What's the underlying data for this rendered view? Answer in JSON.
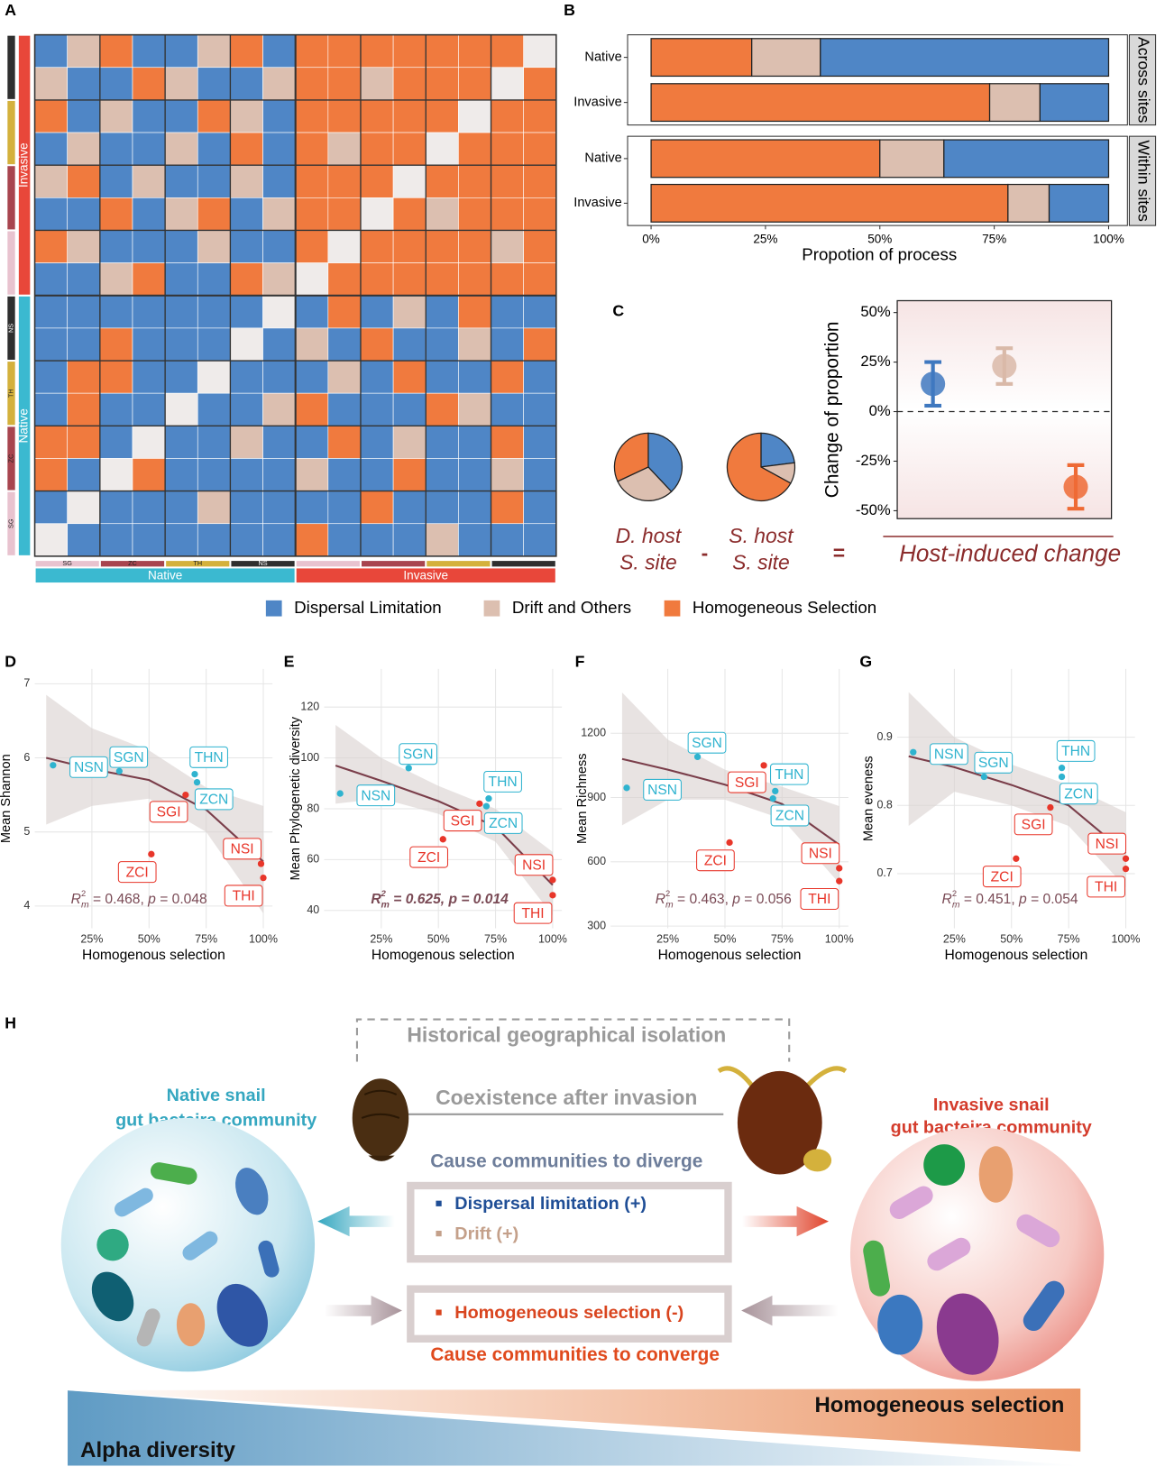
{
  "panel_labels": [
    "A",
    "B",
    "C",
    "D",
    "E",
    "F",
    "G",
    "H"
  ],
  "chart_data": [
    {
      "type": "heatmap",
      "colors": [
        "#4f86c6",
        "#dcbfb0",
        "#f07a3e"
      ],
      "groups": [
        "SG",
        "ZC",
        "TH",
        "NS"
      ],
      "group_colors": [
        "#e8c3cf",
        "#a8454f",
        "#d4b13c",
        "#2f2f2f"
      ],
      "hosts": [
        "Invasive",
        "Native"
      ],
      "host_colors": [
        "#e8473a",
        "#3bb9d0"
      ],
      "values": [
        [
          0,
          1,
          2,
          0,
          0,
          1,
          2,
          0,
          2,
          2,
          2,
          2,
          2,
          2,
          2,
          null
        ],
        [
          1,
          0,
          0,
          2,
          1,
          0,
          0,
          1,
          2,
          2,
          1,
          2,
          2,
          2,
          null,
          2
        ],
        [
          2,
          0,
          1,
          0,
          0,
          2,
          1,
          0,
          2,
          2,
          2,
          2,
          2,
          null,
          2,
          2
        ],
        [
          0,
          1,
          0,
          0,
          1,
          0,
          2,
          0,
          2,
          1,
          2,
          2,
          null,
          2,
          2,
          2
        ],
        [
          1,
          2,
          0,
          1,
          0,
          0,
          1,
          0,
          2,
          2,
          2,
          null,
          2,
          2,
          2,
          2
        ],
        [
          0,
          0,
          2,
          0,
          1,
          2,
          0,
          1,
          2,
          2,
          null,
          2,
          1,
          2,
          2,
          2
        ],
        [
          2,
          1,
          0,
          0,
          0,
          1,
          0,
          0,
          2,
          null,
          2,
          2,
          2,
          2,
          1,
          2
        ],
        [
          0,
          0,
          1,
          2,
          0,
          0,
          2,
          1,
          null,
          2,
          2,
          2,
          2,
          2,
          2,
          2
        ],
        [
          0,
          0,
          0,
          0,
          0,
          0,
          0,
          null,
          0,
          2,
          0,
          1,
          0,
          2,
          0,
          0
        ],
        [
          0,
          0,
          2,
          0,
          0,
          0,
          null,
          0,
          1,
          0,
          2,
          0,
          0,
          1,
          0,
          2
        ],
        [
          0,
          2,
          2,
          0,
          0,
          null,
          0,
          0,
          0,
          1,
          0,
          2,
          0,
          0,
          2,
          0
        ],
        [
          0,
          2,
          0,
          0,
          null,
          0,
          0,
          1,
          2,
          0,
          0,
          0,
          2,
          1,
          0,
          0
        ],
        [
          2,
          2,
          0,
          null,
          0,
          0,
          1,
          0,
          0,
          2,
          0,
          1,
          0,
          0,
          2,
          0
        ],
        [
          2,
          0,
          null,
          2,
          0,
          0,
          0,
          0,
          1,
          0,
          0,
          2,
          0,
          0,
          1,
          0
        ],
        [
          0,
          null,
          0,
          0,
          0,
          1,
          0,
          0,
          0,
          0,
          2,
          0,
          0,
          0,
          2,
          0
        ],
        [
          null,
          0,
          0,
          0,
          0,
          0,
          0,
          0,
          2,
          0,
          0,
          0,
          1,
          0,
          0,
          0
        ]
      ]
    },
    {
      "type": "stacked_bar_h",
      "facet": "Across sites",
      "categories": [
        "Native",
        "Invasive"
      ],
      "xlim": [
        0,
        100
      ],
      "series": [
        {
          "name": "Homogeneous Selection",
          "color": "#f07a3e",
          "values": [
            22,
            74
          ]
        },
        {
          "name": "Drift and Others",
          "color": "#dcbfb0",
          "values": [
            15,
            11
          ]
        },
        {
          "name": "Dispersal Limitation",
          "color": "#4f86c6",
          "values": [
            63,
            15
          ]
        }
      ]
    },
    {
      "type": "stacked_bar_h",
      "facet": "Within sites",
      "categories": [
        "Native",
        "Invasive"
      ],
      "xlim": [
        0,
        100
      ],
      "xticks": [
        {
          "value": 0,
          "label": "0%"
        },
        {
          "value": 25,
          "label": "25%"
        },
        {
          "value": 50,
          "label": "50%"
        },
        {
          "value": 75,
          "label": "75%"
        },
        {
          "value": 100,
          "label": "100%"
        }
      ],
      "xlabel": "Propotion of process",
      "series": [
        {
          "name": "Homogeneous Selection",
          "color": "#f07a3e",
          "values": [
            50,
            78
          ]
        },
        {
          "name": "Drift and Others",
          "color": "#dcbfb0",
          "values": [
            14,
            9
          ]
        },
        {
          "name": "Dispersal Limitation",
          "color": "#4f86c6",
          "values": [
            36,
            13
          ]
        }
      ]
    },
    {
      "type": "pie",
      "label": [
        "D. host",
        "S. site"
      ],
      "values": [
        38,
        30,
        32
      ],
      "colors": [
        "#4f86c6",
        "#dcbfb0",
        "#f07a3e"
      ]
    },
    {
      "type": "pie",
      "label": [
        "S. host",
        "S. site"
      ],
      "values": [
        23,
        10,
        67
      ],
      "colors": [
        "#4f86c6",
        "#dcbfb0",
        "#f07a3e"
      ]
    },
    {
      "type": "errorbar",
      "categories": [
        null,
        null,
        null
      ],
      "values": [
        14,
        23,
        -38
      ],
      "errors": [
        11,
        9,
        11
      ],
      "colors": [
        "#3f78bf",
        "#d9b9a8",
        "#ee6a35"
      ],
      "ylim": [
        -54,
        56
      ],
      "hline": 0,
      "yticks": [
        {
          "value": -50,
          "label": "-50%"
        },
        {
          "value": -25,
          "label": "-25%"
        },
        {
          "value": 0,
          "label": "0%"
        },
        {
          "value": 25,
          "label": "25%"
        },
        {
          "value": 50,
          "label": "50%"
        }
      ],
      "ylabel": "Change of proportion"
    },
    {
      "type": "scatter",
      "ylabel": "Mean Shannon",
      "xlabel": "Homogenous selection",
      "xlim": [
        0,
        104
      ],
      "ylim": [
        3.7,
        7.2
      ],
      "yticks": [
        4,
        5,
        6,
        7
      ],
      "xticks": [
        {
          "value": 25,
          "label": "25%"
        },
        {
          "value": 50,
          "label": "50%"
        },
        {
          "value": 75,
          "label": "75%"
        },
        {
          "value": 100,
          "label": "100%"
        }
      ],
      "labels": [
        "NSN",
        "SGN",
        "THN",
        "ZCN",
        "SGI",
        "ZCI",
        "NSI",
        "THI"
      ],
      "colors": [
        "#2fb3cf",
        "#2fb3cf",
        "#2fb3cf",
        "#2fb3cf",
        "#e8362a",
        "#e8362a",
        "#e8362a",
        "#e8362a"
      ],
      "x": [
        8,
        37,
        70,
        71,
        66,
        51,
        99,
        100
      ],
      "y": [
        5.9,
        5.82,
        5.78,
        5.67,
        5.5,
        4.7,
        4.57,
        4.38
      ],
      "fit": {
        "x": [
          5,
          25,
          50,
          75,
          100
        ],
        "y": [
          6.0,
          5.85,
          5.7,
          5.3,
          4.6
        ],
        "low": [
          5.1,
          5.35,
          5.45,
          5.0,
          3.9
        ],
        "high": [
          6.85,
          6.4,
          6.1,
          5.6,
          5.35
        ]
      },
      "annotation": [
        "R",
        "2",
        "m",
        " = 0.468, ",
        "p",
        " = 0.048"
      ],
      "annotation_bold": false
    },
    {
      "type": "scatter",
      "ylabel": "Mean Phylogenetic diversity",
      "xlabel": "Homogenous selection",
      "xlim": [
        0,
        104
      ],
      "ylim": [
        33,
        135
      ],
      "yticks": [
        40,
        60,
        80,
        100,
        120
      ],
      "xticks": [
        {
          "value": 25,
          "label": "25%"
        },
        {
          "value": 50,
          "label": "50%"
        },
        {
          "value": 75,
          "label": "75%"
        },
        {
          "value": 100,
          "label": "100%"
        }
      ],
      "labels": [
        "NSN",
        "SGN",
        "THN",
        "ZCN",
        "SGI",
        "ZCI",
        "NSI",
        "THI"
      ],
      "colors": [
        "#2fb3cf",
        "#2fb3cf",
        "#2fb3cf",
        "#2fb3cf",
        "#e8362a",
        "#e8362a",
        "#e8362a",
        "#e8362a"
      ],
      "x": [
        7,
        37,
        72,
        71,
        68,
        52,
        100,
        100
      ],
      "y": [
        86,
        96,
        84,
        81,
        82,
        68,
        52,
        46
      ],
      "fit": {
        "x": [
          5,
          25,
          50,
          75,
          100
        ],
        "y": [
          97,
          91,
          83,
          73,
          50
        ],
        "low": [
          82,
          84,
          78,
          67,
          38
        ],
        "high": [
          113,
          100,
          89,
          80,
          63
        ]
      },
      "annotation": [
        "R",
        "2",
        "m",
        " = 0.625, ",
        "p",
        " = 0.014"
      ],
      "annotation_bold": true
    },
    {
      "type": "scatter",
      "ylabel": "Mean Richness",
      "xlabel": "Homogenous selection",
      "xlim": [
        0,
        104
      ],
      "ylim": [
        290,
        1500
      ],
      "yticks": [
        300,
        600,
        900,
        1200
      ],
      "xticks": [
        {
          "value": 25,
          "label": "25%"
        },
        {
          "value": 50,
          "label": "50%"
        },
        {
          "value": 75,
          "label": "75%"
        },
        {
          "value": 100,
          "label": "100%"
        }
      ],
      "labels": [
        "NSN",
        "SGN",
        "THN",
        "ZCN",
        "SGI",
        "ZCI",
        "NSI",
        "THI"
      ],
      "colors": [
        "#2fb3cf",
        "#2fb3cf",
        "#2fb3cf",
        "#2fb3cf",
        "#e8362a",
        "#e8362a",
        "#e8362a",
        "#e8362a"
      ],
      "x": [
        7,
        38,
        72,
        71,
        67,
        52,
        100,
        100
      ],
      "y": [
        945,
        1090,
        930,
        895,
        1050,
        690,
        570,
        510
      ],
      "fit": {
        "x": [
          5,
          25,
          50,
          75,
          100
        ],
        "y": [
          1080,
          1030,
          960,
          870,
          680
        ],
        "low": [
          770,
          890,
          890,
          800,
          500
        ],
        "high": [
          1390,
          1170,
          1030,
          950,
          860
        ]
      },
      "annotation": [
        "R",
        "2",
        "m",
        " = 0.463, ",
        "p",
        " = 0.056"
      ],
      "annotation_bold": false
    },
    {
      "type": "scatter",
      "ylabel": "Mean eveness",
      "xlabel": "Homogenous selection",
      "xlim": [
        0,
        104
      ],
      "ylim": [
        0.62,
        1.0
      ],
      "yticks": [
        0.7,
        0.8,
        0.9
      ],
      "xticks": [
        {
          "value": 25,
          "label": "25%"
        },
        {
          "value": 50,
          "label": "50%"
        },
        {
          "value": 75,
          "label": "75%"
        },
        {
          "value": 100,
          "label": "100%"
        }
      ],
      "labels": [
        "NSN",
        "SGN",
        "THN",
        "ZCN",
        "SGI",
        "ZCI",
        "NSI",
        "THI"
      ],
      "colors": [
        "#2fb3cf",
        "#2fb3cf",
        "#2fb3cf",
        "#2fb3cf",
        "#e8362a",
        "#e8362a",
        "#e8362a",
        "#e8362a"
      ],
      "x": [
        7,
        38,
        72,
        72,
        67,
        52,
        100,
        100
      ],
      "y": [
        0.878,
        0.842,
        0.855,
        0.842,
        0.797,
        0.722,
        0.722,
        0.707
      ],
      "fit": {
        "x": [
          5,
          25,
          50,
          75,
          100
        ],
        "y": [
          0.872,
          0.856,
          0.83,
          0.8,
          0.73
        ],
        "low": [
          0.77,
          0.82,
          0.8,
          0.77,
          0.68
        ],
        "high": [
          0.966,
          0.9,
          0.86,
          0.83,
          0.79
        ]
      },
      "annotation": [
        "R",
        "2",
        "m",
        " = 0.451, ",
        "p",
        " = 0.054"
      ],
      "annotation_bold": false
    }
  ],
  "panel_c": {
    "minus": "-",
    "equals": "=",
    "result": "Host-induced change"
  },
  "diagram": {
    "isolation": "Historical geographical isolation",
    "coexistence": "Coexistence after invasion",
    "native": [
      "Native snail",
      "gut bacteira community"
    ],
    "invasive": [
      "Invasive snail",
      "gut bacteira community"
    ],
    "diverge": "Cause communities to diverge",
    "dispersal": "Dispersal limitation (+)",
    "drift": "Drift (+)",
    "homogeneous": "Homogeneous selection (-)",
    "converge": "Cause communities to converge",
    "gradient_top": "Homogeneous selection",
    "gradient_bottom": "Alpha diversity"
  }
}
